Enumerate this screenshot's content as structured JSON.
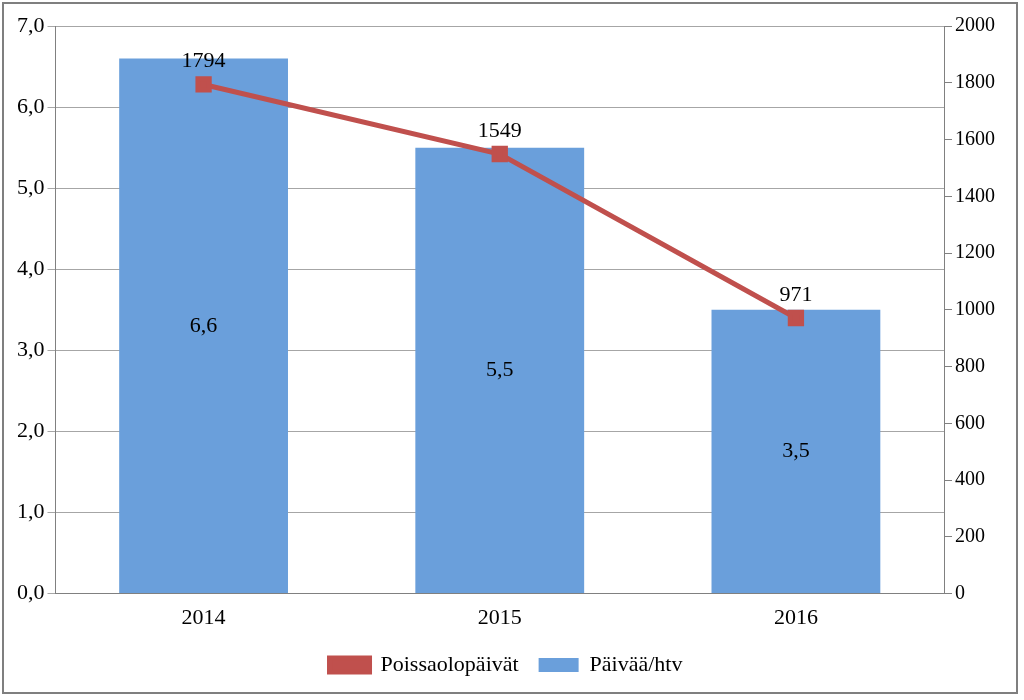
{
  "chart_data": {
    "type": "bar",
    "categories": [
      "2014",
      "2015",
      "2016"
    ],
    "series": [
      {
        "name": "Päivää/htv",
        "type": "bar",
        "color": "#6a9fdb",
        "values": [
          6.6,
          5.5,
          3.5
        ],
        "value_labels": [
          "6,6",
          "5,5",
          "3,5"
        ]
      },
      {
        "name": "Poissaolopäivät",
        "type": "line",
        "color": "#c0504d",
        "marker": "square",
        "axis": "y2",
        "values": [
          1794,
          1549,
          971
        ]
      }
    ],
    "ylim": [
      0,
      7
    ],
    "yticks": [
      {
        "value": 0,
        "label": "0,0"
      },
      {
        "value": 1,
        "label": "1,0"
      },
      {
        "value": 2,
        "label": "2,0"
      },
      {
        "value": 3,
        "label": "3,0"
      },
      {
        "value": 4,
        "label": "4,0"
      },
      {
        "value": 5,
        "label": "5,0"
      },
      {
        "value": 6,
        "label": "6,0"
      },
      {
        "value": 7,
        "label": "7,0"
      }
    ],
    "y2lim": [
      0,
      2000
    ],
    "y2ticks": [
      0,
      200,
      400,
      600,
      800,
      1000,
      1200,
      1400,
      1600,
      1800,
      2000
    ],
    "grid": true,
    "legend": "bottom",
    "data_labels": true
  }
}
